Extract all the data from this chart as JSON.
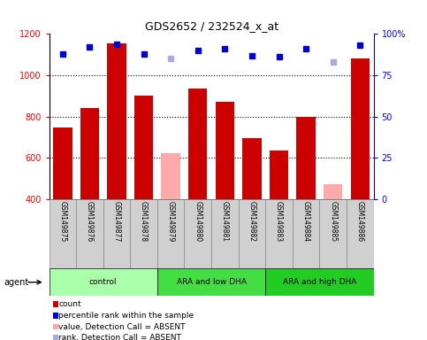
{
  "title": "GDS2652 / 232524_x_at",
  "samples": [
    "GSM149875",
    "GSM149876",
    "GSM149877",
    "GSM149878",
    "GSM149879",
    "GSM149880",
    "GSM149881",
    "GSM149882",
    "GSM149883",
    "GSM149884",
    "GSM149885",
    "GSM149886"
  ],
  "count_values": [
    745,
    840,
    1155,
    900,
    null,
    935,
    870,
    693,
    634,
    800,
    null,
    1083
  ],
  "absent_count_values": [
    null,
    null,
    null,
    null,
    621,
    null,
    null,
    null,
    null,
    null,
    470,
    null
  ],
  "percentile_values": [
    88,
    92,
    94,
    88,
    null,
    90,
    91,
    87,
    86,
    91,
    null,
    93
  ],
  "absent_percentile_values": [
    null,
    null,
    null,
    null,
    85,
    null,
    null,
    null,
    null,
    null,
    83,
    null
  ],
  "ylim_left": [
    400,
    1200
  ],
  "ylim_right": [
    0,
    100
  ],
  "yticks_left": [
    400,
    600,
    800,
    1000,
    1200
  ],
  "yticks_right": [
    0,
    25,
    50,
    75,
    100
  ],
  "groups": [
    {
      "label": "control",
      "start": 0,
      "end": 4,
      "color": "#aaffaa"
    },
    {
      "label": "ARA and low DHA",
      "start": 4,
      "end": 8,
      "color": "#44dd44"
    },
    {
      "label": "ARA and high DHA",
      "start": 8,
      "end": 12,
      "color": "#22cc22"
    }
  ],
  "bar_color_present": "#cc0000",
  "bar_color_absent": "#ffaaaa",
  "dot_color_present": "#0000cc",
  "dot_color_absent": "#aaaadd",
  "agent_label": "agent",
  "legend_items": [
    {
      "color": "#cc0000",
      "label": "count"
    },
    {
      "color": "#0000cc",
      "label": "percentile rank within the sample"
    },
    {
      "color": "#ffaaaa",
      "label": "value, Detection Call = ABSENT"
    },
    {
      "color": "#aaaadd",
      "label": "rank, Detection Call = ABSENT"
    }
  ]
}
